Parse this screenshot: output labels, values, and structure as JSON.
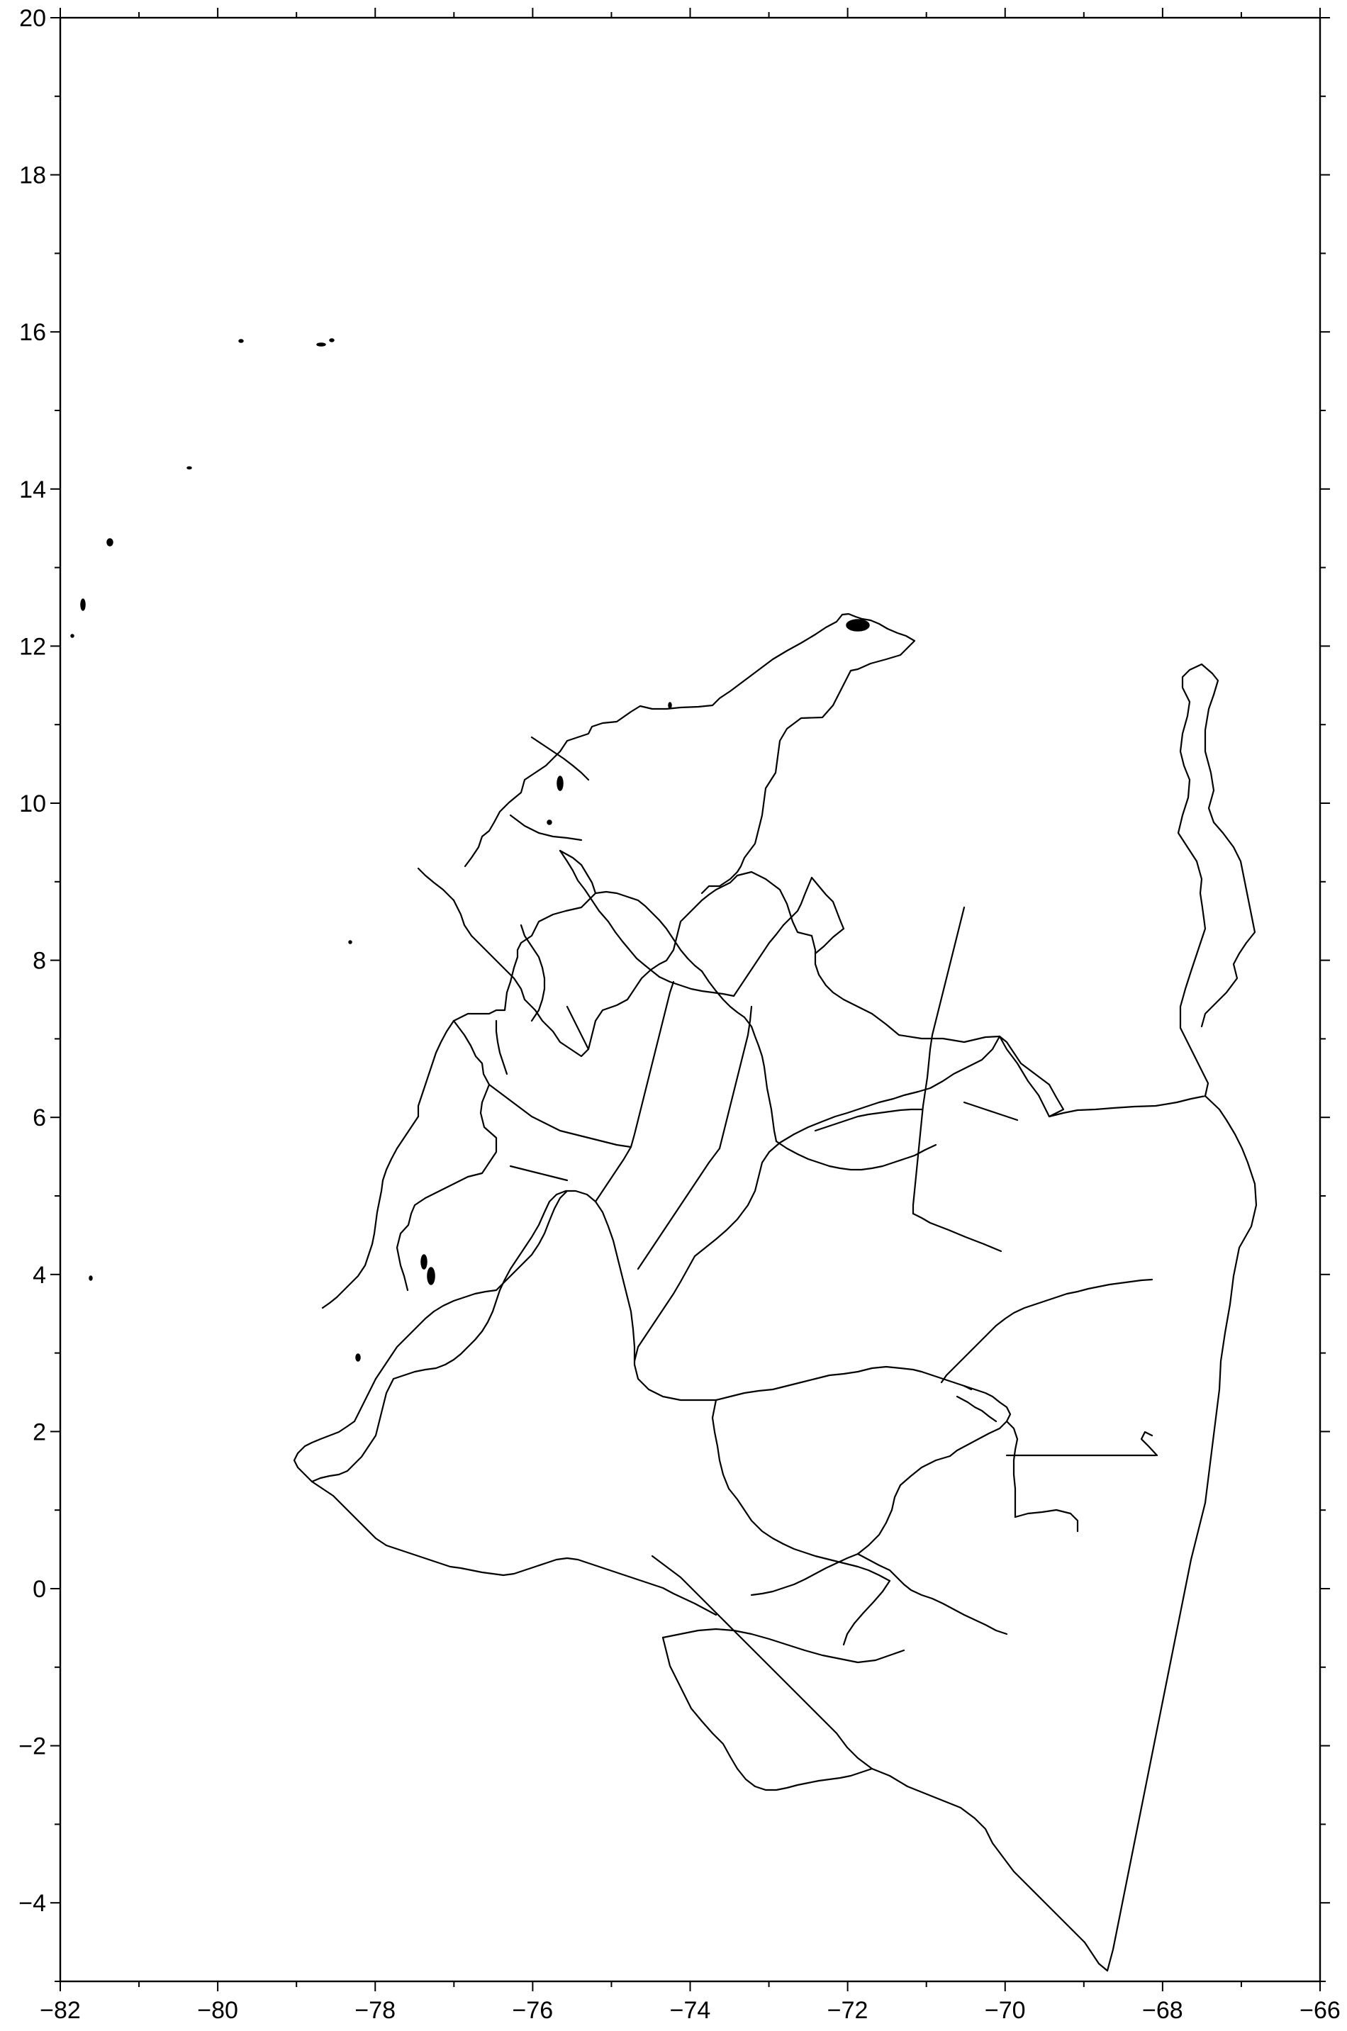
{
  "map": {
    "region": "Colombia",
    "projection": "linear lon/lat",
    "lon_range": [
      -82,
      -66
    ],
    "lat_range": [
      -5,
      20
    ],
    "x_ticks": [
      "−82",
      "−80",
      "−78",
      "−76",
      "−74",
      "−72",
      "−70",
      "−68",
      "−66"
    ],
    "y_ticks": [
      "20",
      "18",
      "16",
      "14",
      "12",
      "10",
      "8",
      "6",
      "4",
      "2",
      "0",
      "−2",
      "−4"
    ],
    "x_tick_values": [
      -82,
      -80,
      -78,
      -76,
      -74,
      -72,
      -70,
      -68,
      -66
    ],
    "y_tick_values": [
      20,
      18,
      16,
      14,
      12,
      10,
      8,
      6,
      4,
      2,
      0,
      -2,
      -4
    ],
    "minor_step": 1,
    "line_color": "#000000",
    "background": "#ffffff"
  }
}
